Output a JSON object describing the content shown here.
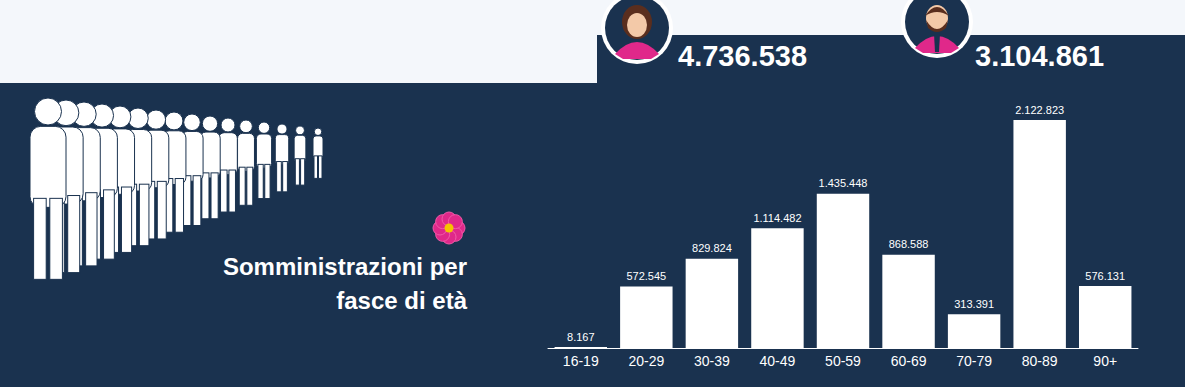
{
  "header": {
    "totals": [
      "4.736.538",
      "3.104.861"
    ]
  },
  "chart_data": {
    "type": "bar",
    "title": "Somministrazioni per fasce di età",
    "categories": [
      "16-19",
      "20-29",
      "30-39",
      "40-49",
      "50-59",
      "60-69",
      "70-79",
      "80-89",
      "90+"
    ],
    "values": [
      8167,
      572545,
      829824,
      1114482,
      1435448,
      868588,
      313391,
      2122823,
      576131
    ],
    "value_labels": [
      "8.167",
      "572.545",
      "829.824",
      "1.114.482",
      "1.435.448",
      "868.588",
      "313.391",
      "2.122.823",
      "576.131"
    ],
    "color": "#ffffff",
    "data_labels": true,
    "grid": false,
    "tick_labels": "x"
  }
}
